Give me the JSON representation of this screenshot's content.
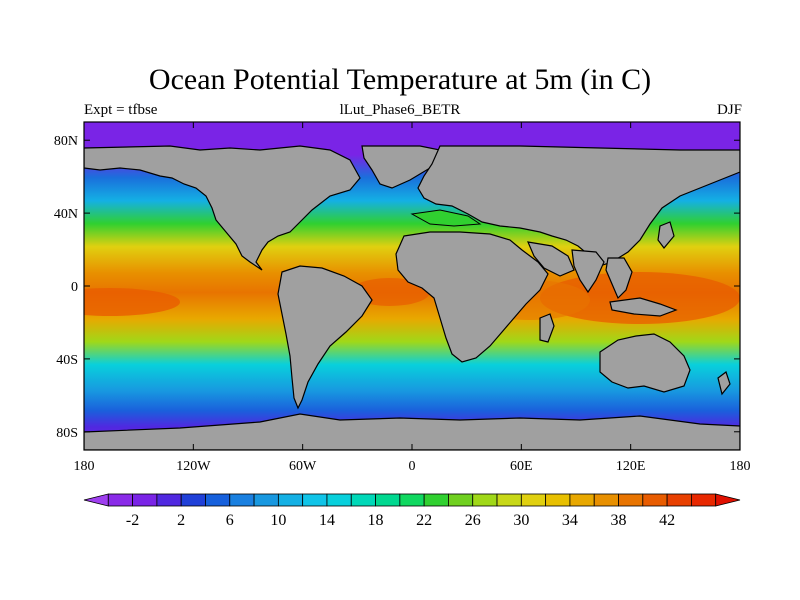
{
  "title": "Ocean Potential Temperature at 5m (in C)",
  "left_label": "Expt = tfbse",
  "center_label": "lLut_Phase6_BETR",
  "right_label": "DJF",
  "land_color": "#a0a0a0",
  "axes": {
    "lat_ticks": [
      {
        "value": 80,
        "label": "80N"
      },
      {
        "value": 40,
        "label": "40N"
      },
      {
        "value": 0,
        "label": "0"
      },
      {
        "value": -40,
        "label": "40S"
      },
      {
        "value": -80,
        "label": "80S"
      }
    ],
    "lon_ticks": [
      {
        "value": -180,
        "label": "180"
      },
      {
        "value": -120,
        "label": "120W"
      },
      {
        "value": -60,
        "label": "60W"
      },
      {
        "value": 0,
        "label": "0"
      },
      {
        "value": 60,
        "label": "60E"
      },
      {
        "value": 120,
        "label": "120E"
      },
      {
        "value": 180,
        "label": "180"
      }
    ],
    "lon_range": [
      -180,
      180
    ],
    "lat_range": [
      -90,
      90
    ]
  },
  "colorbar": {
    "labels": [
      "-2",
      "2",
      "6",
      "10",
      "14",
      "18",
      "22",
      "26",
      "30",
      "34",
      "38",
      "42"
    ],
    "colors": [
      "#9f3ff0",
      "#8a2be8",
      "#7a24e6",
      "#5028e0",
      "#2040d8",
      "#1660dc",
      "#1a80e0",
      "#1898e0",
      "#14b0e4",
      "#10c4e8",
      "#08d0dc",
      "#00d8b8",
      "#00d890",
      "#10d860",
      "#30d030",
      "#70d020",
      "#a0d818",
      "#c8d818",
      "#e0d010",
      "#e8c000",
      "#e8a800",
      "#e89000",
      "#e87400",
      "#e85c00",
      "#e84000",
      "#e82800",
      "#e01000"
    ]
  }
}
